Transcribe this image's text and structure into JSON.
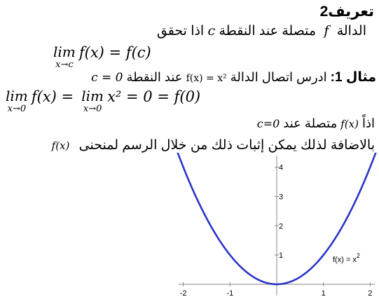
{
  "heading": "تعريف2",
  "definition": {
    "text_1": "الدالة",
    "f": "f",
    "text_2": "متصلة عند النقطة",
    "c": "c",
    "text_3": "اذا تحقق"
  },
  "def_formula": {
    "lim": "lim",
    "sub": "x→c",
    "expr": "f(x) = f(c)"
  },
  "example": {
    "label": "مثال 1:",
    "text_1": "ادرس اتصال الدالة",
    "func": "f(x) = x²",
    "text_2": "عند النقطة",
    "point": "c = 0"
  },
  "example_formula": {
    "lim1": "lim",
    "sub1": "x→0",
    "part1": "f(x) =",
    "lim2": "lim",
    "sub2": "x→0",
    "part2": "x² = 0 = f(0)"
  },
  "conclusion": {
    "text_1": "اذاً",
    "fx": "f(x)",
    "text_2": "متصلة عند",
    "point": "c=0"
  },
  "graph_intro": {
    "text": "بالاضافة لذلك يمكن إثبات ذلك من خلال الرسم لمنحنى",
    "fx": "f(x)"
  },
  "chart_data": {
    "type": "line",
    "series": [
      {
        "name": "f(x) = x²",
        "x": [
          -2.2,
          -2,
          -1.5,
          -1,
          -0.5,
          0,
          0.5,
          1,
          1.5,
          2,
          2.2
        ],
        "y": [
          4.84,
          4,
          2.25,
          1,
          0.25,
          0,
          0.25,
          1,
          2.25,
          4,
          4.84
        ]
      }
    ],
    "x_ticks": [
      "-2",
      "-1",
      "1",
      "2"
    ],
    "y_ticks": [
      "1",
      "2",
      "3",
      "4"
    ],
    "xlim": [
      -2.1,
      2.1
    ],
    "ylim": [
      -0.1,
      4.4
    ],
    "legend_label": "f(x) = x",
    "legend_sup": "2",
    "colors": {
      "curve": "#2b35c8",
      "axis": "#888888"
    }
  }
}
